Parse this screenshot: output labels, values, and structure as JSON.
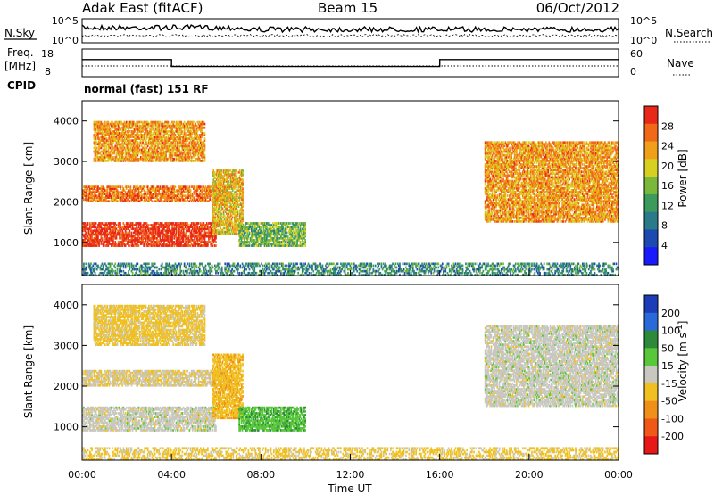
{
  "header": {
    "station": "Adak East (fitACF)",
    "beam": "Beam 15",
    "date": "06/Oct/2012"
  },
  "aux": {
    "nsky_label": "N.Sky",
    "nsearch_label": "N.Search",
    "noise_top_tick": "10^5",
    "noise_bottom_tick": "10^0",
    "freq_label": "Freq.",
    "freq_unit": "[MHz]",
    "freq_ticks": [
      "18",
      "8"
    ],
    "nave_label": "Nave",
    "nave_ticks": [
      "60",
      "0"
    ],
    "cpid_label": "CPID",
    "cpid_text": "normal (fast) 151 RF",
    "freq_trace": {
      "times": [
        "00:00",
        "04:00",
        "04:00",
        "16:00",
        "16:00",
        "24:00"
      ],
      "values": [
        15,
        15,
        12,
        12,
        15,
        15
      ]
    }
  },
  "chart_data": [
    {
      "type": "heatmap",
      "panel": "power",
      "ylabel": "Slant Range [km]",
      "ylim": [
        180,
        4500
      ],
      "yticks": [
        "1000",
        "2000",
        "3000",
        "4000"
      ],
      "colorbar_label": "Power [dB]",
      "colorbar_ticks": [
        "4",
        "8",
        "12",
        "16",
        "20",
        "24",
        "28"
      ],
      "colors": [
        "#1a1aff",
        "#1c4ab0",
        "#2a7a8a",
        "#3c9a5a",
        "#7ab83c",
        "#d8d020",
        "#f0a018",
        "#f06818",
        "#e82818"
      ],
      "echo_regions": [
        {
          "t": [
            0.0,
            6.0
          ],
          "range": [
            900,
            1500
          ],
          "power": 28
        },
        {
          "t": [
            0.0,
            6.5
          ],
          "range": [
            2000,
            2400
          ],
          "power": 24
        },
        {
          "t": [
            0.5,
            5.5
          ],
          "range": [
            3000,
            4000
          ],
          "power": 22
        },
        {
          "t": [
            5.8,
            7.2
          ],
          "range": [
            1200,
            2800
          ],
          "power": 20
        },
        {
          "t": [
            7.0,
            10.0
          ],
          "range": [
            900,
            1500
          ],
          "power": 14
        },
        {
          "t": [
            18.0,
            24.0
          ],
          "range": [
            1500,
            3500
          ],
          "power": 22
        },
        {
          "t": [
            0.0,
            24.0
          ],
          "range": [
            180,
            500
          ],
          "power": 10
        }
      ]
    },
    {
      "type": "heatmap",
      "panel": "velocity",
      "xlabel": "Time UT",
      "ylabel": "Slant Range [km]",
      "xlim": [
        "00:00",
        "24:00"
      ],
      "ylim": [
        180,
        4500
      ],
      "xticks": [
        "00:00",
        "04:00",
        "08:00",
        "12:00",
        "16:00",
        "20:00",
        "00:00"
      ],
      "yticks": [
        "1000",
        "2000",
        "3000",
        "4000"
      ],
      "colorbar_label": "Velocity [m s^-1]",
      "colorbar_ticks": [
        "200",
        "100",
        "50",
        "15",
        "-15",
        "-50",
        "-100",
        "-200"
      ],
      "colors": [
        "#1c3cb8",
        "#2a6ad8",
        "#2e8a3a",
        "#58c83a",
        "#c8c8c0",
        "#f0c020",
        "#f09018",
        "#f05818",
        "#e81818"
      ],
      "echo_regions": [
        {
          "t": [
            0.0,
            6.0
          ],
          "range": [
            900,
            1500
          ],
          "velocity": 0
        },
        {
          "t": [
            0.0,
            6.5
          ],
          "range": [
            2000,
            2400
          ],
          "velocity": -20
        },
        {
          "t": [
            0.5,
            5.5
          ],
          "range": [
            3000,
            4000
          ],
          "velocity": -40
        },
        {
          "t": [
            5.8,
            7.2
          ],
          "range": [
            1200,
            2800
          ],
          "velocity": -60
        },
        {
          "t": [
            7.0,
            10.0
          ],
          "range": [
            900,
            1500
          ],
          "velocity": 60
        },
        {
          "t": [
            18.0,
            24.0
          ],
          "range": [
            1500,
            3500
          ],
          "velocity": 0
        },
        {
          "t": [
            0.0,
            24.0
          ],
          "range": [
            180,
            500
          ],
          "velocity": -40
        }
      ]
    }
  ]
}
